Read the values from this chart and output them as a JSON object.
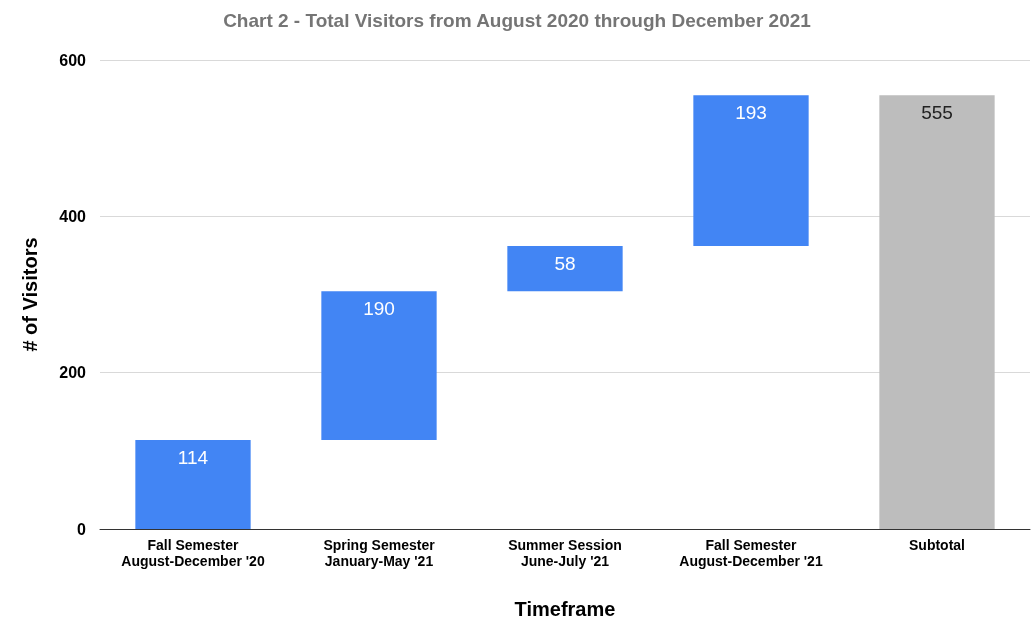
{
  "chart_data": {
    "type": "bar",
    "title": "Chart 2 - Total Visitors from August 2020 through December 2021",
    "xlabel": "Timeframe",
    "ylabel": "# of Visitors",
    "categories": [
      "Fall Semester\nAugust-December '20",
      "Spring Semester\nJanuary-May '21",
      "Summer Session\nJune-July '21",
      "Fall Semester\nAugust-December '21",
      "Subtotal"
    ],
    "values": [
      114,
      190,
      58,
      193,
      555
    ],
    "base": [
      0,
      114,
      304,
      362,
      0
    ],
    "colors": [
      "#4285f4",
      "#4285f4",
      "#4285f4",
      "#4285f4",
      "#bdbdbd"
    ],
    "ylim": [
      0,
      600
    ],
    "yticks": [
      0,
      200,
      400,
      600
    ],
    "grid": "y",
    "data_labels": true
  }
}
